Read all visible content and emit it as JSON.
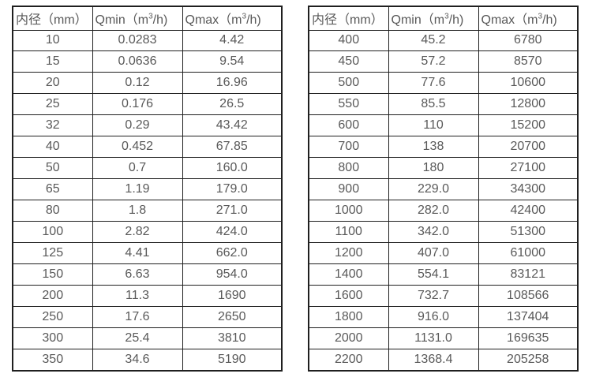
{
  "page": {
    "background_color": "#ffffff",
    "text_color": "#595959",
    "border_color": "#1f1f1f"
  },
  "tables": [
    {
      "name": "flow-table-small-diameters",
      "headers": [
        {
          "text": "内径（mm）"
        },
        {
          "pre": "Qmin（m",
          "sup": "3",
          "post": "/h)"
        },
        {
          "pre": "Qmax（m",
          "sup": "3",
          "post": "/h)"
        }
      ],
      "rows": [
        [
          "10",
          "0.0283",
          "4.42"
        ],
        [
          "15",
          "0.0636",
          "9.54"
        ],
        [
          "20",
          "0.12",
          "16.96"
        ],
        [
          "25",
          "0.176",
          "26.5"
        ],
        [
          "32",
          "0.29",
          "43.42"
        ],
        [
          "40",
          "0.452",
          "67.85"
        ],
        [
          "50",
          "0.7",
          "160.0"
        ],
        [
          "65",
          "1.19",
          "179.0"
        ],
        [
          "80",
          "1.8",
          "271.0"
        ],
        [
          "100",
          "2.82",
          "424.0"
        ],
        [
          "125",
          "4.41",
          "662.0"
        ],
        [
          "150",
          "6.63",
          "954.0"
        ],
        [
          "200",
          "11.3",
          "1690"
        ],
        [
          "250",
          "17.6",
          "2650"
        ],
        [
          "300",
          "25.4",
          "3810"
        ],
        [
          "350",
          "34.6",
          "5190"
        ]
      ]
    },
    {
      "name": "flow-table-large-diameters",
      "headers": [
        {
          "text": "内径（mm）"
        },
        {
          "pre": "Qmin（m",
          "sup": "3",
          "post": "/h)"
        },
        {
          "pre": "Qmax（m",
          "sup": "3",
          "post": "/h)"
        }
      ],
      "rows": [
        [
          "400",
          "45.2",
          "6780"
        ],
        [
          "450",
          "57.2",
          "8570"
        ],
        [
          "500",
          "77.6",
          "10600"
        ],
        [
          "550",
          "85.5",
          "12800"
        ],
        [
          "600",
          "110",
          "15200"
        ],
        [
          "700",
          "138",
          "20700"
        ],
        [
          "800",
          "180",
          "27100"
        ],
        [
          "900",
          "229.0",
          "34300"
        ],
        [
          "1000",
          "282.0",
          "42400"
        ],
        [
          "1100",
          "342.0",
          "51300"
        ],
        [
          "1200",
          "407.0",
          "61000"
        ],
        [
          "1400",
          "554.1",
          "83121"
        ],
        [
          "1600",
          "732.7",
          "108566"
        ],
        [
          "1800",
          "916.0",
          "137404"
        ],
        [
          "2000",
          "1131.0",
          "169635"
        ],
        [
          "2200",
          "1368.4",
          "205258"
        ]
      ]
    }
  ]
}
